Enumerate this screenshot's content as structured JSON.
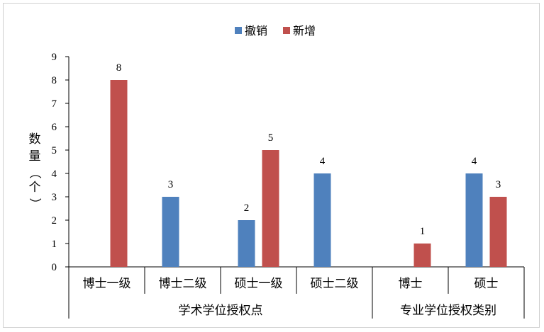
{
  "chart_data": {
    "type": "bar",
    "title": "",
    "ylabel": "数量（个）",
    "ylim": [
      0,
      9
    ],
    "yticks": [
      0,
      1,
      2,
      3,
      4,
      5,
      6,
      7,
      8,
      9
    ],
    "legend": "top",
    "grid": false,
    "categories": [
      "博士一级",
      "博士二级",
      "硕士一级",
      "硕士二级",
      "博士",
      "硕士"
    ],
    "groups": [
      {
        "label": "学术学位授权点",
        "categories": [
          "博士一级",
          "博士二级",
          "硕士一级",
          "硕士二级"
        ]
      },
      {
        "label": "专业学位授权类别",
        "categories": [
          "博士",
          "硕士"
        ]
      }
    ],
    "series": [
      {
        "name": "撤销",
        "color": "#4F81BD",
        "values": [
          null,
          3,
          2,
          4,
          null,
          4
        ]
      },
      {
        "name": "新增",
        "color": "#C0504D",
        "values": [
          8,
          null,
          5,
          null,
          1,
          3
        ]
      }
    ]
  }
}
